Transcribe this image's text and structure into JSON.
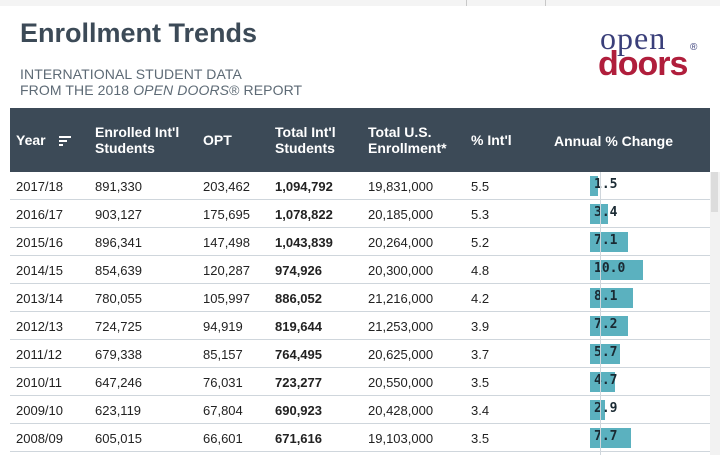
{
  "header": {
    "title": "Enrollment Trends",
    "subtitle_line1": "INTERNATIONAL STUDENT DATA",
    "subtitle_line2_prefix": "FROM THE 2018 ",
    "subtitle_line2_em": "OPEN DOORS",
    "subtitle_line2_suffix": "® REPORT"
  },
  "logo": {
    "line1": "open",
    "line2": "doors",
    "reg": "®"
  },
  "table": {
    "columns": {
      "year": "Year",
      "enrolled": [
        "Enrolled Int'l",
        "Students"
      ],
      "opt": "OPT",
      "total_intl": [
        "Total Int'l",
        "Students"
      ],
      "total_us": [
        "Total U.S.",
        "Enrollment*"
      ],
      "pct_intl": "% Int'l",
      "annual_change": "Annual % Change"
    },
    "rows": [
      {
        "year": "2017/18",
        "enrolled": "891,330",
        "opt": "203,462",
        "total_intl": "1,094,792",
        "total_us": "19,831,000",
        "pct_intl": "5.5",
        "change": "1.5",
        "change_value": 1.5
      },
      {
        "year": "2016/17",
        "enrolled": "903,127",
        "opt": "175,695",
        "total_intl": "1,078,822",
        "total_us": "20,185,000",
        "pct_intl": "5.3",
        "change": "3.4",
        "change_value": 3.4
      },
      {
        "year": "2015/16",
        "enrolled": "896,341",
        "opt": "147,498",
        "total_intl": "1,043,839",
        "total_us": "20,264,000",
        "pct_intl": "5.2",
        "change": "7.1",
        "change_value": 7.1
      },
      {
        "year": "2014/15",
        "enrolled": "854,639",
        "opt": "120,287",
        "total_intl": "974,926",
        "total_us": "20,300,000",
        "pct_intl": "4.8",
        "change": "10.0",
        "change_value": 10.0
      },
      {
        "year": "2013/14",
        "enrolled": "780,055",
        "opt": "105,997",
        "total_intl": "886,052",
        "total_us": "21,216,000",
        "pct_intl": "4.2",
        "change": "8.1",
        "change_value": 8.1
      },
      {
        "year": "2012/13",
        "enrolled": "724,725",
        "opt": "94,919",
        "total_intl": "819,644",
        "total_us": "21,253,000",
        "pct_intl": "3.9",
        "change": "7.2",
        "change_value": 7.2
      },
      {
        "year": "2011/12",
        "enrolled": "679,338",
        "opt": "85,157",
        "total_intl": "764,495",
        "total_us": "20,625,000",
        "pct_intl": "3.7",
        "change": "5.7",
        "change_value": 5.7
      },
      {
        "year": "2010/11",
        "enrolled": "647,246",
        "opt": "76,031",
        "total_intl": "723,277",
        "total_us": "20,550,000",
        "pct_intl": "3.5",
        "change": "4.7",
        "change_value": 4.7
      },
      {
        "year": "2009/10",
        "enrolled": "623,119",
        "opt": "67,804",
        "total_intl": "690,923",
        "total_us": "20,428,000",
        "pct_intl": "3.4",
        "change": "2.9",
        "change_value": 2.9
      },
      {
        "year": "2008/09",
        "enrolled": "605,015",
        "opt": "66,601",
        "total_intl": "671,616",
        "total_us": "19,103,000",
        "pct_intl": "3.5",
        "change": "7.7",
        "change_value": 7.7
      }
    ]
  },
  "colors": {
    "header_bg": "#3c4a57",
    "bar": "#5bb1bf",
    "logo_blue": "#3a3f7a",
    "logo_red": "#b01e3c"
  },
  "icons": {
    "sort": "sort-icon"
  }
}
